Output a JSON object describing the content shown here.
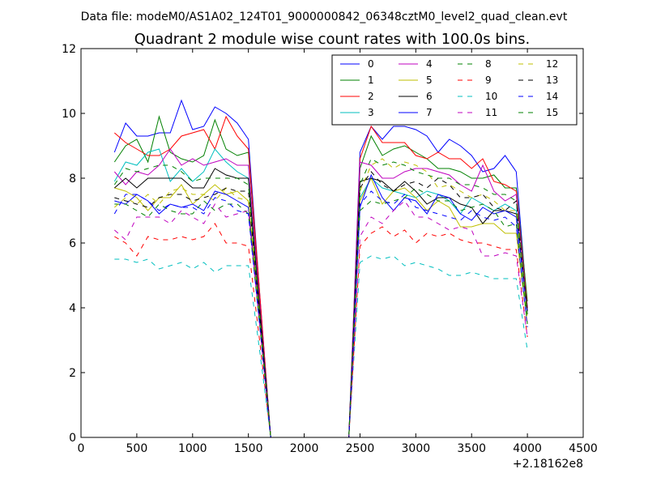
{
  "figure_title": "Data file: modeM0/AS1A02_124T01_9000000842_06348cztM0_level2_quad_clean.evt",
  "chart_data": {
    "type": "line",
    "title": "Quadrant 2 module wise count rates with 100.0s bins.",
    "xlabel": "",
    "ylabel": "",
    "x_offset_label": "+2.18162e8",
    "xlim": [
      0,
      4500
    ],
    "ylim": [
      0,
      12
    ],
    "xticks": [
      0,
      500,
      1000,
      1500,
      2000,
      2500,
      3000,
      3500,
      4000,
      4500
    ],
    "xtick_labels": [
      "0",
      "500",
      "1000",
      "1500",
      "2000",
      "2500",
      "3000",
      "3500",
      "4000",
      "4500"
    ],
    "yticks": [
      0,
      2,
      4,
      6,
      8,
      10,
      12
    ],
    "ytick_labels": [
      "0",
      "2",
      "4",
      "6",
      "8",
      "10",
      "12"
    ],
    "grid": false,
    "legend": "top-right",
    "legend_columns": 4,
    "x": [
      300,
      400,
      500,
      600,
      700,
      800,
      900,
      1000,
      1100,
      1200,
      1300,
      1400,
      1500,
      1600,
      1700,
      2400,
      2500,
      2600,
      2700,
      2800,
      2900,
      3000,
      3100,
      3200,
      3300,
      3400,
      3500,
      3600,
      3700,
      3800,
      3900,
      4000
    ],
    "series": [
      {
        "name": "0",
        "color": "#0000ff",
        "style": "solid",
        "values": [
          8.8,
          9.7,
          9.3,
          9.3,
          9.4,
          9.4,
          10.4,
          9.5,
          9.6,
          10.2,
          10.0,
          9.7,
          9.2,
          4.5,
          0,
          0,
          8.8,
          9.6,
          9.2,
          9.6,
          9.6,
          9.5,
          9.3,
          8.8,
          9.2,
          9.0,
          8.7,
          8.2,
          8.3,
          8.7,
          8.2,
          4.0
        ]
      },
      {
        "name": "1",
        "color": "#008000",
        "style": "solid",
        "values": [
          8.5,
          9.0,
          9.2,
          8.5,
          9.9,
          8.8,
          8.6,
          8.5,
          8.7,
          9.8,
          8.9,
          8.7,
          8.8,
          4.4,
          0,
          0,
          8.3,
          9.3,
          8.7,
          8.9,
          9.0,
          8.8,
          8.6,
          8.3,
          8.3,
          8.2,
          8.0,
          8.0,
          8.1,
          7.7,
          7.7,
          4.2
        ]
      },
      {
        "name": "2",
        "color": "#ff0000",
        "style": "solid",
        "values": [
          9.4,
          9.1,
          8.9,
          8.7,
          8.7,
          8.9,
          9.3,
          9.4,
          9.5,
          8.9,
          9.9,
          9.3,
          8.9,
          4.5,
          0,
          0,
          8.6,
          9.6,
          9.1,
          9.1,
          9.1,
          8.7,
          8.6,
          8.8,
          8.6,
          8.6,
          8.3,
          8.6,
          7.9,
          7.8,
          7.6,
          4.0
        ]
      },
      {
        "name": "3",
        "color": "#00bfbf",
        "style": "solid",
        "values": [
          7.9,
          8.5,
          8.4,
          8.8,
          8.9,
          7.9,
          8.3,
          7.9,
          8.2,
          8.9,
          8.5,
          8.2,
          8.0,
          4.1,
          0,
          0,
          7.4,
          8.0,
          7.7,
          7.6,
          7.5,
          7.4,
          7.6,
          7.5,
          7.3,
          6.9,
          7.4,
          7.2,
          7.0,
          7.2,
          7.0,
          3.8
        ]
      },
      {
        "name": "4",
        "color": "#bf00bf",
        "style": "solid",
        "values": [
          8.2,
          7.8,
          8.2,
          8.1,
          8.4,
          8.9,
          8.4,
          8.6,
          8.4,
          8.5,
          8.6,
          8.4,
          8.4,
          4.2,
          0,
          0,
          8.5,
          8.4,
          8.0,
          8.0,
          8.2,
          8.3,
          8.3,
          8.2,
          8.1,
          7.8,
          7.6,
          8.4,
          7.6,
          7.3,
          7.5,
          3.9
        ]
      },
      {
        "name": "5",
        "color": "#bfbf00",
        "style": "solid",
        "values": [
          7.7,
          7.6,
          7.4,
          7.0,
          7.4,
          7.4,
          7.8,
          7.2,
          7.5,
          7.8,
          7.5,
          7.6,
          7.3,
          3.8,
          0,
          0,
          7.3,
          8.0,
          7.2,
          7.6,
          7.7,
          7.4,
          7.0,
          7.3,
          7.1,
          6.5,
          6.5,
          6.6,
          6.6,
          6.3,
          6.3,
          3.5
        ]
      },
      {
        "name": "6",
        "color": "#000000",
        "style": "solid",
        "values": [
          7.7,
          8.0,
          7.7,
          8.0,
          8.0,
          8.0,
          8.0,
          7.7,
          7.7,
          8.3,
          8.1,
          8.0,
          8.0,
          4.0,
          0,
          0,
          7.9,
          8.0,
          7.9,
          7.6,
          7.9,
          7.6,
          7.2,
          7.4,
          7.4,
          7.2,
          7.1,
          6.6,
          7.0,
          7.0,
          6.9,
          3.9
        ]
      },
      {
        "name": "7",
        "color": "#0000ff",
        "style": "solid",
        "values": [
          7.3,
          7.2,
          7.5,
          7.3,
          6.9,
          7.2,
          7.1,
          7.2,
          7.0,
          7.6,
          7.5,
          7.3,
          7.1,
          3.6,
          0,
          0,
          7.1,
          8.1,
          7.4,
          7.0,
          7.4,
          7.3,
          6.9,
          7.5,
          7.4,
          6.9,
          6.7,
          7.1,
          6.9,
          7.0,
          6.8,
          3.8
        ]
      },
      {
        "name": "8",
        "color": "#008000",
        "style": "dashed",
        "values": [
          7.2,
          7.2,
          7.0,
          6.8,
          7.2,
          7.0,
          6.9,
          6.9,
          7.3,
          7.0,
          7.2,
          7.2,
          6.9,
          3.5,
          0,
          0,
          7.0,
          7.3,
          7.2,
          7.3,
          7.4,
          7.7,
          7.5,
          7.3,
          7.3,
          7.0,
          7.1,
          7.2,
          7.0,
          6.5,
          6.6,
          3.5
        ]
      },
      {
        "name": "9",
        "color": "#ff0000",
        "style": "dashed",
        "values": [
          6.2,
          6.0,
          5.6,
          6.2,
          6.1,
          6.1,
          6.2,
          6.1,
          6.2,
          6.6,
          6.0,
          6.0,
          5.9,
          3.0,
          0,
          0,
          5.9,
          6.3,
          6.5,
          6.2,
          6.4,
          6.0,
          6.3,
          6.2,
          6.3,
          6.1,
          6.0,
          6.0,
          5.9,
          5.8,
          5.8,
          3.1
        ]
      },
      {
        "name": "10",
        "color": "#00bfbf",
        "style": "dashed",
        "values": [
          5.5,
          5.5,
          5.4,
          5.5,
          5.2,
          5.3,
          5.4,
          5.2,
          5.4,
          5.1,
          5.3,
          5.3,
          5.3,
          2.7,
          0,
          0,
          5.4,
          5.6,
          5.5,
          5.6,
          5.3,
          5.4,
          5.3,
          5.2,
          5.0,
          5.0,
          5.1,
          5.0,
          4.9,
          4.9,
          4.9,
          2.7
        ]
      },
      {
        "name": "11",
        "color": "#bf00bf",
        "style": "dashed",
        "values": [
          6.4,
          6.1,
          6.8,
          6.8,
          6.8,
          6.6,
          7.0,
          6.8,
          6.6,
          7.2,
          6.8,
          6.9,
          7.0,
          3.5,
          0,
          0,
          6.2,
          6.8,
          6.6,
          7.0,
          7.3,
          6.8,
          6.8,
          6.6,
          6.4,
          6.5,
          6.4,
          5.6,
          5.6,
          5.7,
          5.6,
          3.1
        ]
      },
      {
        "name": "12",
        "color": "#bfbf00",
        "style": "dashed",
        "values": [
          7.1,
          7.4,
          7.2,
          7.5,
          7.2,
          7.6,
          7.7,
          7.5,
          7.5,
          7.3,
          7.7,
          7.4,
          7.3,
          3.7,
          0,
          0,
          7.6,
          8.4,
          8.6,
          8.3,
          8.5,
          8.4,
          8.2,
          7.7,
          7.8,
          7.6,
          7.4,
          7.5,
          7.3,
          7.0,
          7.0,
          3.7
        ]
      },
      {
        "name": "13",
        "color": "#000000",
        "style": "dashed",
        "values": [
          7.4,
          7.3,
          7.2,
          7.1,
          7.4,
          7.5,
          7.5,
          7.3,
          7.4,
          7.5,
          7.7,
          7.6,
          7.6,
          3.8,
          0,
          0,
          7.7,
          8.2,
          7.8,
          7.6,
          7.8,
          7.9,
          7.7,
          8.0,
          7.8,
          7.4,
          7.4,
          7.5,
          7.1,
          7.0,
          7.3,
          3.8
        ]
      },
      {
        "name": "14",
        "color": "#0000ff",
        "style": "dashed",
        "values": [
          6.9,
          7.5,
          7.5,
          7.3,
          7.0,
          7.2,
          7.1,
          7.1,
          6.9,
          7.4,
          7.3,
          7.0,
          6.9,
          3.5,
          0,
          0,
          7.2,
          7.6,
          7.3,
          7.2,
          7.5,
          7.1,
          7.0,
          6.9,
          6.8,
          6.7,
          7.0,
          6.8,
          6.7,
          6.8,
          6.5,
          3.4
        ]
      },
      {
        "name": "15",
        "color": "#008000",
        "style": "dashed",
        "values": [
          7.8,
          8.3,
          8.2,
          8.3,
          8.4,
          8.4,
          8.2,
          7.9,
          8.0,
          8.0,
          8.0,
          8.0,
          7.8,
          3.9,
          0,
          0,
          7.8,
          8.6,
          8.4,
          8.5,
          8.4,
          8.2,
          8.1,
          8.0,
          8.0,
          7.8,
          7.8,
          7.7,
          7.5,
          7.5,
          7.3,
          3.8
        ]
      }
    ]
  }
}
